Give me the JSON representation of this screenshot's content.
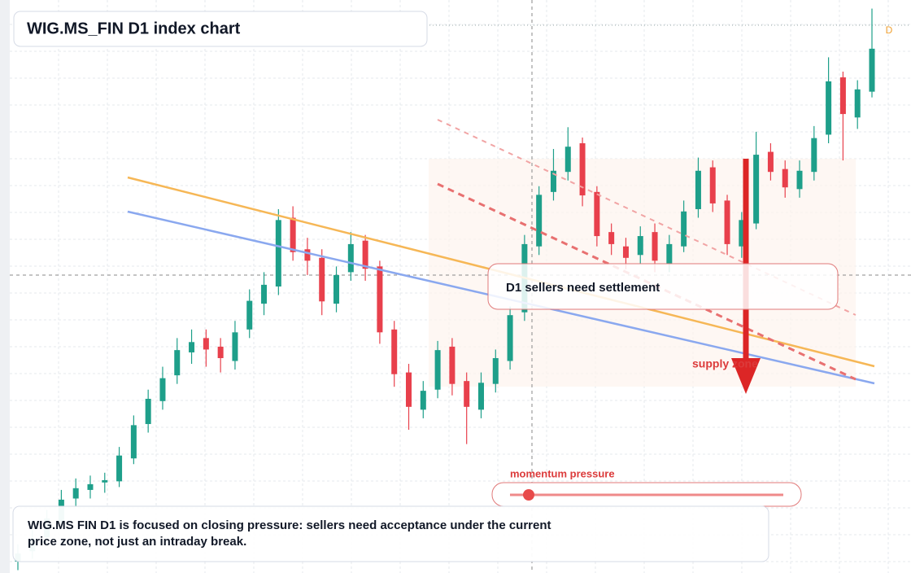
{
  "chart_data": {
    "type": "candlestick",
    "title": "WIG.MS_FIN D1 index chart",
    "callout": "D1 sellers need settlement",
    "zone_label": "supply zone",
    "gauge_label": "momentum pressure",
    "note": "WIG.MS FIN D1 is focused on closing pressure: sellers need acceptance under the current price zone, not just an intraday break.",
    "marker": "D",
    "up_color": "#1e9f8a",
    "down_color": "#e8404c",
    "ylim": [
      0,
      100
    ],
    "open": [
      2.0,
      3.8,
      6.2,
      9.0,
      13.0,
      14.5,
      15.8,
      16.0,
      20.0,
      26.0,
      30.0,
      34.5,
      38.5,
      41.0,
      39.5,
      37.0,
      42.5,
      47.0,
      50.0,
      62.0,
      56.5,
      55.0,
      47.0,
      52.5,
      58.0,
      53.5,
      42.5,
      35.0,
      28.5,
      32.0,
      39.5,
      33.5,
      28.5,
      33.0,
      37.0,
      45.5,
      57.0,
      66.5,
      70.0,
      75.0,
      66.5,
      59.5,
      57.0,
      55.5,
      59.5,
      54.0,
      57.0,
      63.5,
      70.8,
      65.0,
      57.0,
      61.0,
      73.5,
      70.5,
      67.0,
      70.0,
      76.5,
      86.5,
      79.5,
      84.0
    ],
    "high": [
      5.0,
      7.5,
      11.0,
      14.5,
      16.5,
      17.0,
      17.5,
      22.0,
      27.5,
      32.0,
      36.0,
      41.0,
      42.5,
      42.5,
      41.0,
      44.0,
      49.5,
      52.5,
      63.5,
      64.0,
      58.5,
      56.5,
      53.5,
      59.5,
      59.0,
      54.5,
      44.0,
      36.5,
      33.5,
      40.5,
      41.0,
      35.0,
      35.0,
      39.0,
      46.5,
      59.0,
      67.5,
      74.0,
      77.8,
      76.0,
      67.5,
      61.0,
      58.5,
      60.5,
      61.0,
      59.0,
      65.0,
      72.5,
      72.0,
      66.0,
      63.0,
      77.0,
      75.0,
      72.0,
      72.0,
      78.0,
      90.0,
      87.5,
      86.0,
      98.5
    ],
    "low": [
      0.5,
      2.5,
      5.0,
      8.0,
      11.5,
      13.0,
      14.0,
      15.0,
      19.0,
      24.5,
      28.5,
      33.0,
      36.5,
      36.0,
      35.0,
      35.5,
      41.0,
      45.0,
      48.5,
      54.5,
      52.0,
      45.0,
      45.5,
      51.0,
      51.0,
      40.0,
      32.5,
      25.0,
      27.0,
      30.5,
      31.0,
      22.5,
      27.0,
      31.5,
      35.5,
      44.0,
      55.5,
      65.0,
      68.5,
      64.0,
      57.0,
      55.5,
      53.0,
      54.0,
      52.5,
      52.5,
      56.0,
      62.0,
      63.0,
      55.5,
      55.0,
      60.0,
      68.5,
      65.5,
      65.5,
      68.5,
      75.0,
      72.0,
      77.5,
      83.0
    ],
    "close": [
      3.4,
      6.0,
      9.5,
      12.8,
      14.8,
      15.5,
      16.2,
      20.5,
      25.8,
      30.4,
      34.0,
      38.9,
      40.3,
      39.0,
      37.5,
      42.0,
      47.5,
      50.3,
      61.6,
      56.0,
      54.5,
      47.4,
      52.0,
      57.4,
      53.1,
      42.0,
      34.7,
      29.0,
      31.8,
      38.9,
      33.0,
      29.0,
      33.2,
      37.5,
      45.0,
      57.4,
      66.0,
      70.2,
      74.4,
      65.9,
      58.8,
      57.4,
      55.0,
      58.8,
      54.5,
      57.4,
      63.1,
      70.2,
      64.5,
      57.4,
      61.6,
      73.0,
      70.0,
      67.3,
      70.2,
      75.9,
      85.8,
      80.1,
      84.4,
      91.5
    ]
  }
}
